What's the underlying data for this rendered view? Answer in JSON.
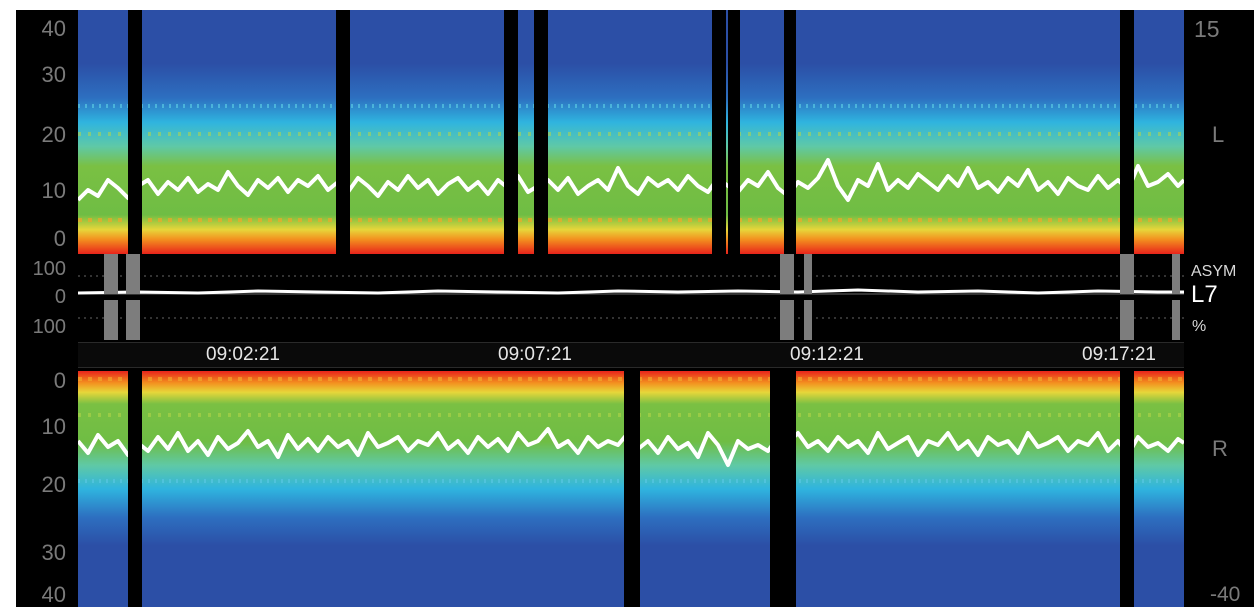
{
  "top_panel": {
    "y_ticks": [
      "40",
      "30",
      "20",
      "10",
      "0"
    ],
    "channel_label": "L",
    "scale_max_label": "15"
  },
  "asym_panel": {
    "ticks": [
      "100",
      "0",
      "100"
    ],
    "title": "ASYM",
    "channel": "L7",
    "unit": "%"
  },
  "time_axis": {
    "labels": [
      "09:02:21",
      "09:07:21",
      "09:12:21",
      "09:17:21"
    ]
  },
  "bottom_panel": {
    "y_ticks": [
      "0",
      "10",
      "20",
      "30",
      "40"
    ],
    "channel_label": "R",
    "scale_min_label": "-40"
  },
  "colors": {
    "background": "#2c4fa6",
    "artifact": "#000000",
    "low_freq_band": "#e8231b",
    "mid_band": "#7ac043",
    "upper_band": "#2fb4df",
    "trend_line": "#ffffff"
  }
}
